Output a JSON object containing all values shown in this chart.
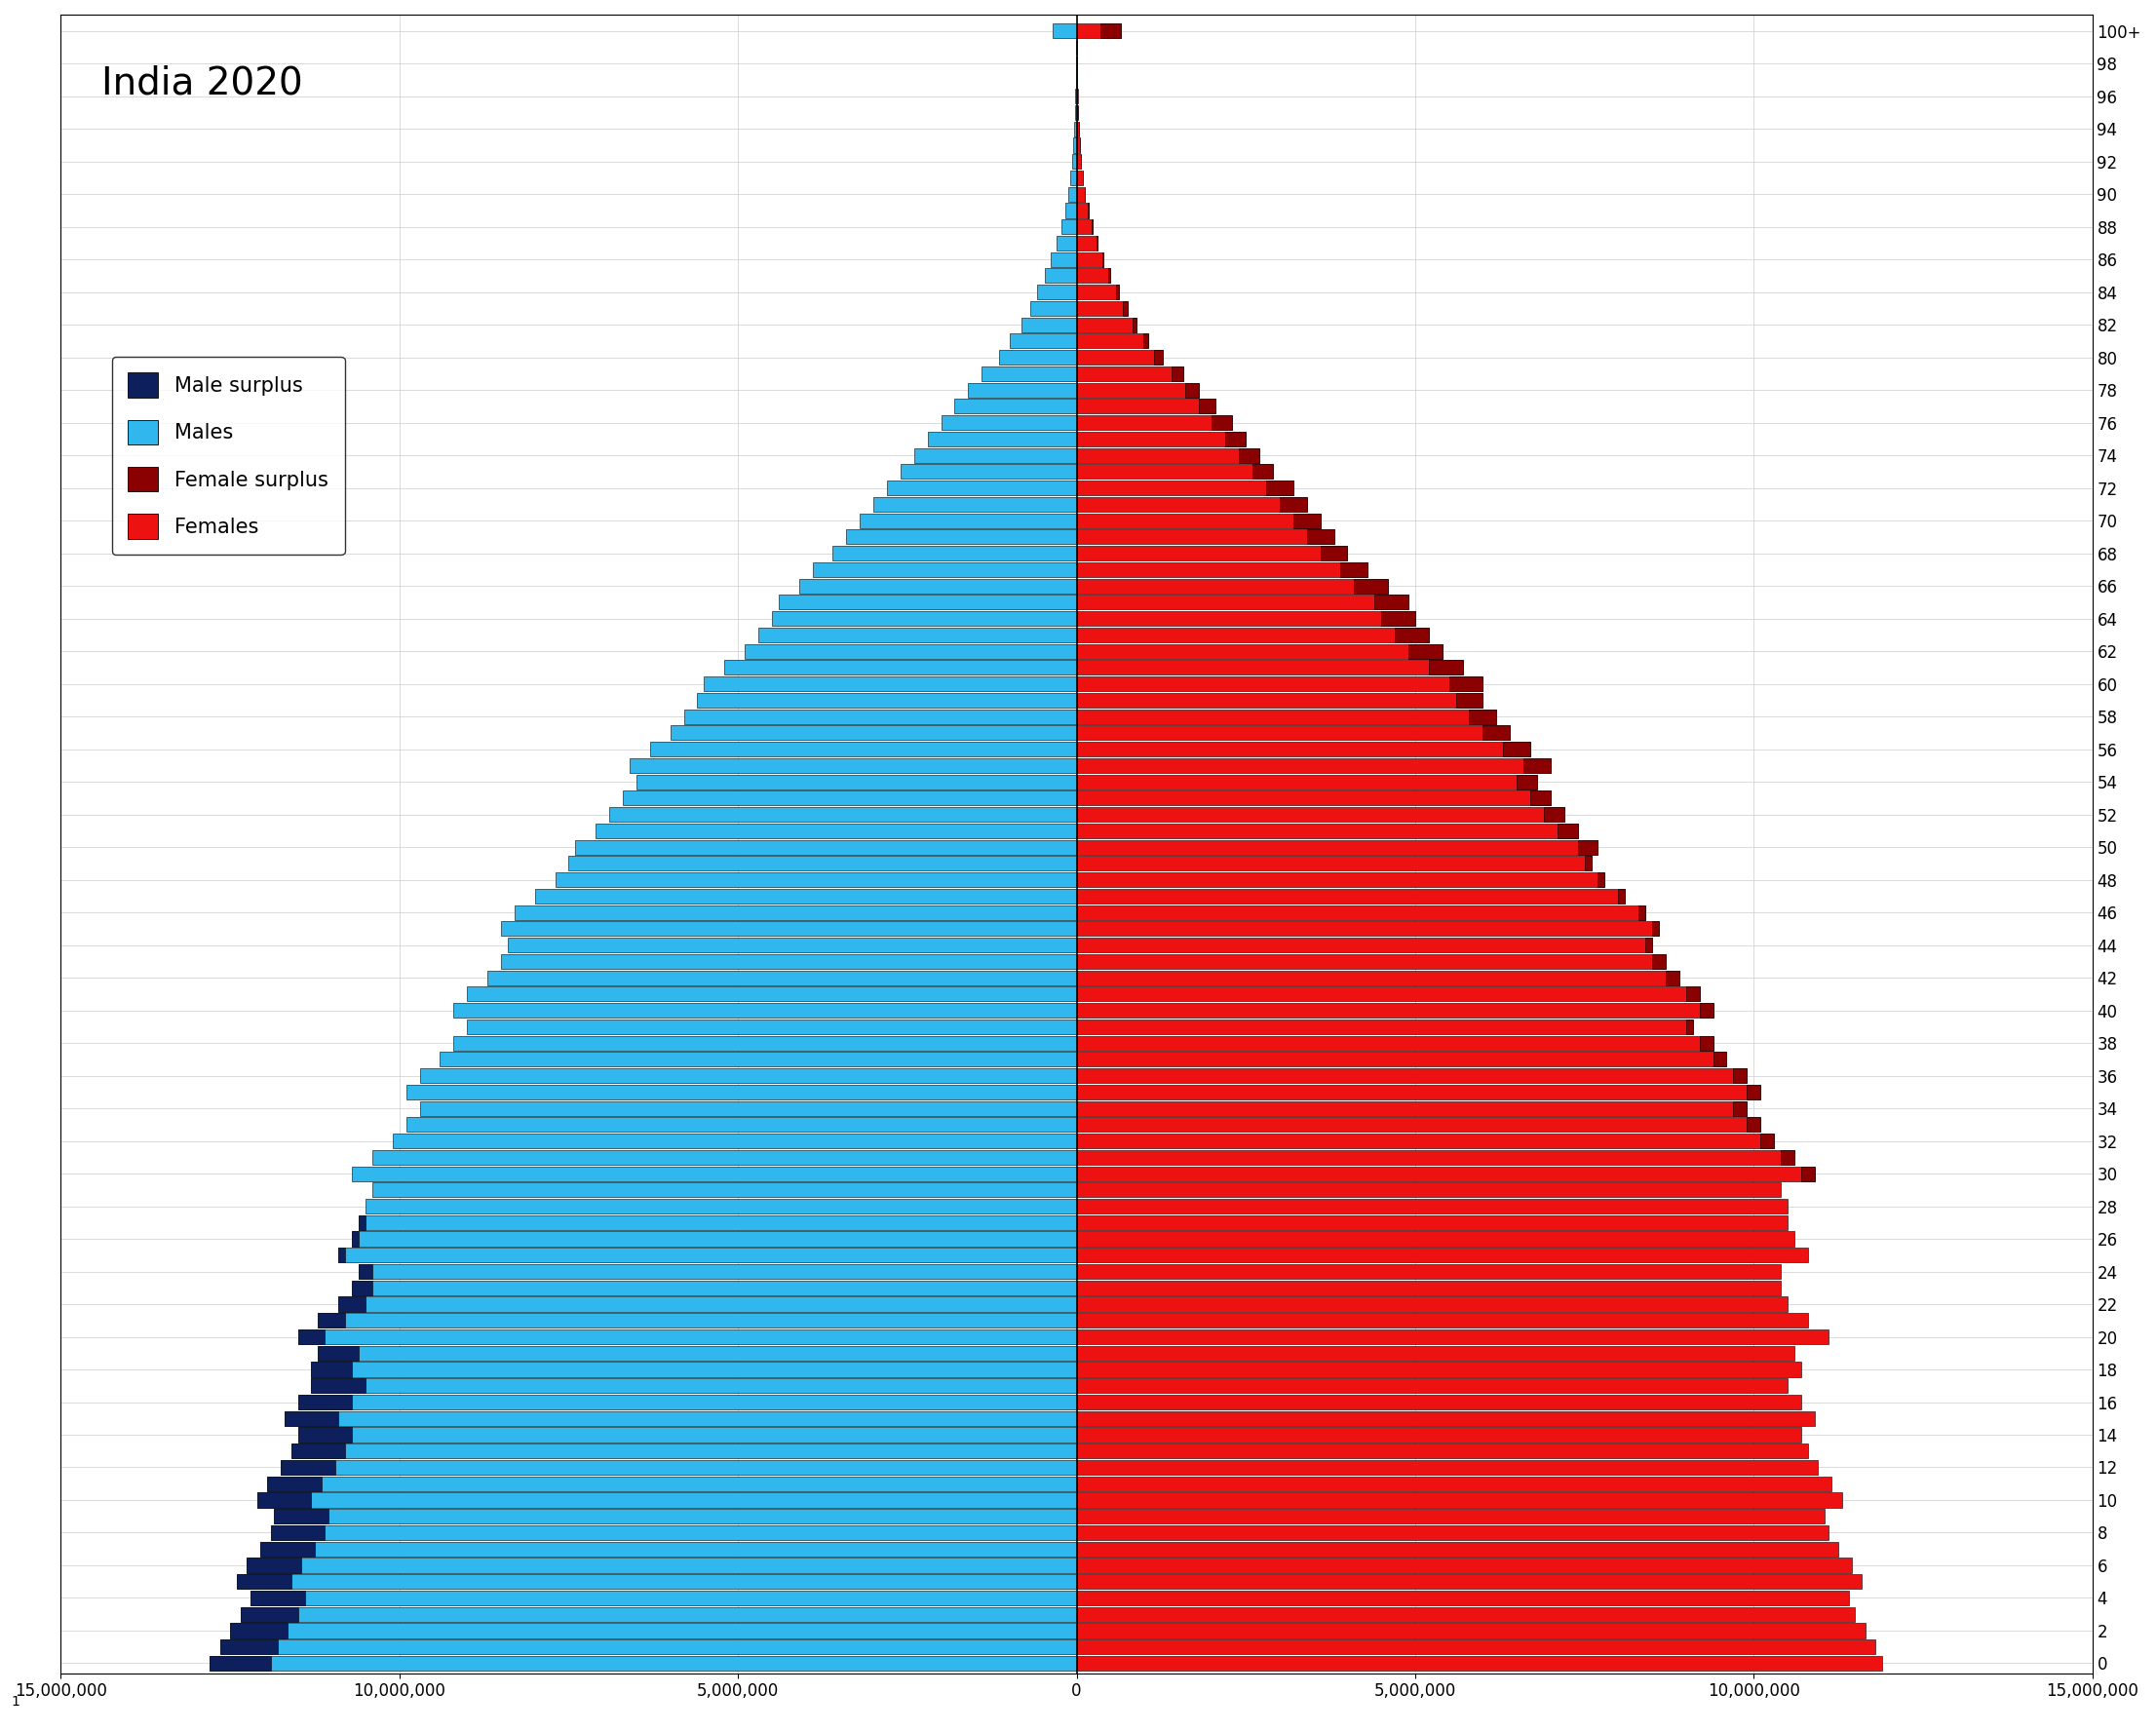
{
  "title": "India 2020",
  "title_fontsize": 28,
  "ages": [
    0,
    1,
    2,
    3,
    4,
    5,
    6,
    7,
    8,
    9,
    10,
    11,
    12,
    13,
    14,
    15,
    16,
    17,
    18,
    19,
    20,
    21,
    22,
    23,
    24,
    25,
    26,
    27,
    28,
    29,
    30,
    31,
    32,
    33,
    34,
    35,
    36,
    37,
    38,
    39,
    40,
    41,
    42,
    43,
    44,
    45,
    46,
    47,
    48,
    49,
    50,
    51,
    52,
    53,
    54,
    55,
    56,
    57,
    58,
    59,
    60,
    61,
    62,
    63,
    64,
    65,
    66,
    67,
    68,
    69,
    70,
    71,
    72,
    73,
    74,
    75,
    76,
    77,
    78,
    79,
    80,
    81,
    82,
    83,
    84,
    85,
    86,
    87,
    88,
    89,
    90,
    91,
    92,
    93,
    94,
    95,
    96,
    97,
    98,
    99,
    100
  ],
  "male_pop": [
    12800000,
    12650000,
    12500000,
    12350000,
    12200000,
    12400000,
    12250000,
    12050000,
    11900000,
    11850000,
    12100000,
    11950000,
    11750000,
    11600000,
    11500000,
    11700000,
    11500000,
    11300000,
    11300000,
    11200000,
    11500000,
    11200000,
    10900000,
    10700000,
    10600000,
    10900000,
    10700000,
    10600000,
    10500000,
    10400000,
    10700000,
    10400000,
    10100000,
    9900000,
    9700000,
    9900000,
    9700000,
    9400000,
    9200000,
    9000000,
    9200000,
    9000000,
    8700000,
    8500000,
    8400000,
    8500000,
    8300000,
    8000000,
    7700000,
    7500000,
    7400000,
    7100000,
    6900000,
    6700000,
    6500000,
    6600000,
    6300000,
    6000000,
    5800000,
    5600000,
    5500000,
    5200000,
    4900000,
    4700000,
    4500000,
    4400000,
    4100000,
    3900000,
    3600000,
    3400000,
    3200000,
    3000000,
    2800000,
    2600000,
    2400000,
    2200000,
    2000000,
    1800000,
    1600000,
    1400000,
    1150000,
    980000,
    820000,
    690000,
    580000,
    470000,
    380000,
    295000,
    225000,
    168000,
    122000,
    88000,
    64000,
    46000,
    33000,
    23000,
    16000,
    11000,
    7500,
    5000,
    350000
  ],
  "female_pop": [
    11900000,
    11800000,
    11650000,
    11500000,
    11400000,
    11600000,
    11450000,
    11250000,
    11100000,
    11050000,
    11300000,
    11150000,
    10950000,
    10800000,
    10700000,
    10900000,
    10700000,
    10500000,
    10700000,
    10600000,
    11100000,
    10800000,
    10500000,
    10400000,
    10400000,
    10800000,
    10600000,
    10500000,
    10500000,
    10400000,
    10900000,
    10600000,
    10300000,
    10100000,
    9900000,
    10100000,
    9900000,
    9600000,
    9400000,
    9100000,
    9400000,
    9200000,
    8900000,
    8700000,
    8500000,
    8600000,
    8400000,
    8100000,
    7800000,
    7600000,
    7700000,
    7400000,
    7200000,
    7000000,
    6800000,
    7000000,
    6700000,
    6400000,
    6200000,
    6000000,
    6000000,
    5700000,
    5400000,
    5200000,
    5000000,
    4900000,
    4600000,
    4300000,
    4000000,
    3800000,
    3600000,
    3400000,
    3200000,
    2900000,
    2700000,
    2500000,
    2300000,
    2050000,
    1800000,
    1580000,
    1280000,
    1060000,
    890000,
    750000,
    620000,
    500000,
    400000,
    310000,
    235000,
    175000,
    128000,
    92000,
    66000,
    47000,
    34000,
    24000,
    16000,
    11000,
    7500,
    5000,
    650000
  ],
  "male_color": "#30B8EE",
  "female_color": "#EE1111",
  "male_surplus_color": "#0D1F5C",
  "female_surplus_color": "#8B0000",
  "background_color": "#FFFFFF",
  "grid_color": "#CCCCCC",
  "xlim_left": -15000000,
  "xlim_right": 15000000,
  "tick_fontsize": 12,
  "legend_fontsize": 15,
  "bar_height": 0.9,
  "edgecolor": "#000000",
  "edgewidth": 0.4,
  "xtick_vals": [
    -15000000,
    -10000000,
    -5000000,
    0,
    5000000,
    10000000,
    15000000
  ],
  "xtick_labels": [
    "15,000,000",
    "10,000,000",
    "5,000,000",
    "0",
    "5,000,000",
    "10,000,000",
    "15,000,000"
  ],
  "ytick_step": 2,
  "legend_entries": [
    "Male surplus",
    "Males",
    "Female surplus",
    "Females"
  ]
}
